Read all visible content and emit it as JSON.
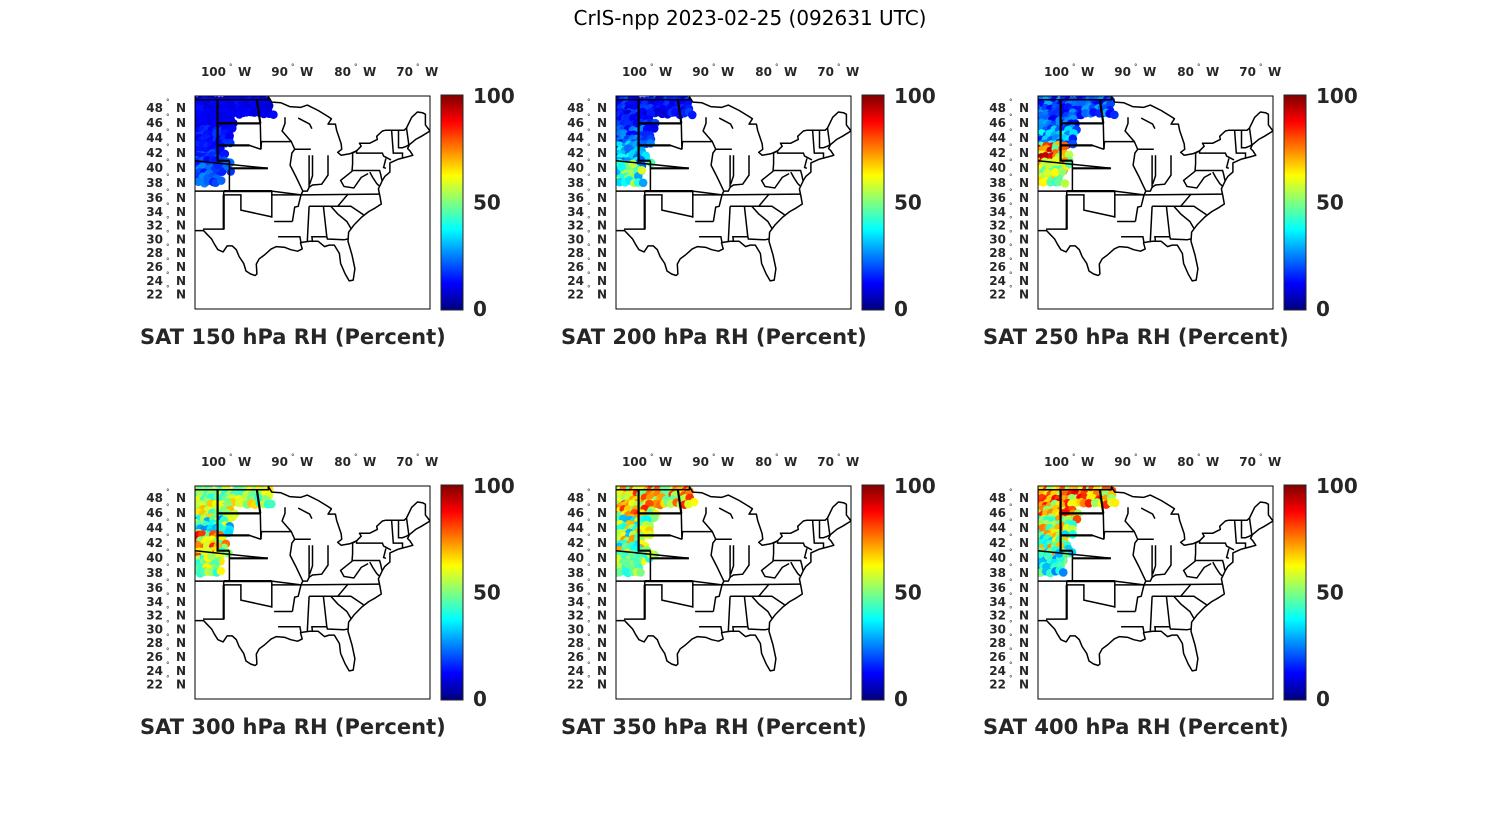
{
  "figure": {
    "title": "CrIS-npp 2023-02-25 (092631 UTC)"
  },
  "axes": {
    "lon_ticks": [
      "100",
      "90",
      "80",
      "70"
    ],
    "lon_hemisphere": "W",
    "lat_ticks": [
      "48",
      "46",
      "44",
      "42",
      "40",
      "38",
      "36",
      "34",
      "32",
      "30",
      "28",
      "26",
      "24",
      "22"
    ],
    "lat_hemisphere": "N",
    "degree_symbol": "°",
    "lon_range": [
      -108,
      -67
    ],
    "lat_range": [
      21.5,
      49.5
    ]
  },
  "colorbar": {
    "colormap": "jet",
    "min": 0,
    "max": 100,
    "tick_labels": [
      "100",
      "50",
      "0"
    ]
  },
  "colors": {
    "jet_stops": [
      "#00007f",
      "#0000ff",
      "#007fff",
      "#00ffff",
      "#7fff7f",
      "#ffff00",
      "#ff7f00",
      "#ff0000",
      "#7f0000"
    ]
  },
  "panels": [
    {
      "caption": "SAT 150 hPa RH (Percent)",
      "profile": [
        [
          8,
          14
        ],
        [
          10,
          18
        ],
        [
          12,
          22
        ],
        [
          14,
          26
        ]
      ]
    },
    {
      "caption": "SAT 200 hPa RH (Percent)",
      "profile": [
        [
          8,
          20
        ],
        [
          12,
          28
        ],
        [
          18,
          40
        ],
        [
          28,
          60
        ]
      ]
    },
    {
      "caption": "SAT 250 hPa RH (Percent)",
      "profile": [
        [
          10,
          30
        ],
        [
          14,
          40
        ],
        [
          45,
          95
        ],
        [
          40,
          70
        ]
      ]
    },
    {
      "caption": "SAT 300 hPa RH (Percent)",
      "profile": [
        [
          40,
          70
        ],
        [
          25,
          60
        ],
        [
          35,
          90
        ],
        [
          40,
          65
        ]
      ]
    },
    {
      "caption": "SAT 350 hPa RH (Percent)",
      "profile": [
        [
          45,
          85
        ],
        [
          30,
          70
        ],
        [
          30,
          75
        ],
        [
          40,
          60
        ]
      ]
    },
    {
      "caption": "SAT 400 hPa RH (Percent)",
      "profile": [
        [
          50,
          90
        ],
        [
          35,
          80
        ],
        [
          30,
          75
        ],
        [
          25,
          55
        ]
      ]
    }
  ]
}
